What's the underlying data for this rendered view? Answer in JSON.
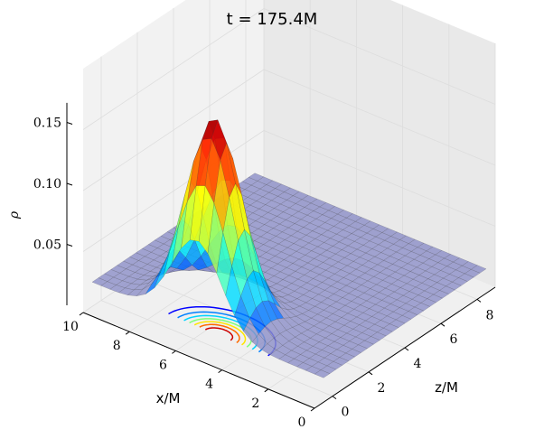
{
  "chart_data": {
    "type": "surface3d",
    "title": "t = 175.4M",
    "xlabel": "x/M",
    "ylabel": "z/M",
    "zlabel": "ρ",
    "x_ticks": [
      "0",
      "2",
      "4",
      "6",
      "8",
      "10"
    ],
    "y_ticks": [
      "0",
      "2",
      "4",
      "6",
      "8"
    ],
    "z_ticks": [
      "0.05",
      "0.10",
      "0.15"
    ],
    "xlim": [
      0,
      10
    ],
    "ylim": [
      -1,
      9
    ],
    "zlim": [
      0,
      0.2
    ],
    "surface": {
      "description_values": {
        "peak_rho": 0.18,
        "peak_x": 5.5,
        "peak_z": 0.5,
        "background_rho": 0.02
      },
      "colormap": "jet",
      "background_color": "#8e90c8"
    },
    "contour_levels": [
      0.02,
      0.04,
      0.06,
      0.08,
      0.1,
      0.12,
      0.14,
      0.16
    ],
    "contour_colors": [
      "#00007f",
      "#0000ff",
      "#0080ff",
      "#00d4ff",
      "#7dff7a",
      "#ffe600",
      "#ff6a00",
      "#cc0000"
    ]
  }
}
